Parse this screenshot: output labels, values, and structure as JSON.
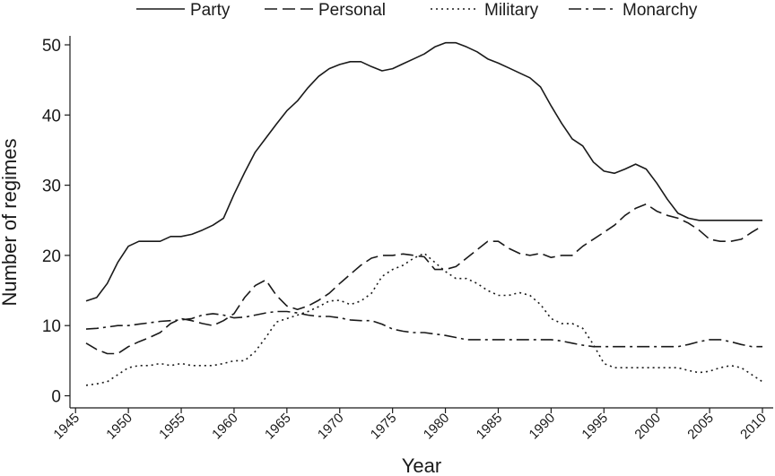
{
  "chart_data": {
    "type": "line",
    "xlabel": "Year",
    "ylabel": "Number of regimes",
    "xlim": [
      1945,
      2010
    ],
    "ylim": [
      0,
      50
    ],
    "x_ticks": [
      "1945",
      "1950",
      "1955",
      "1960",
      "1965",
      "1970",
      "1975",
      "1980",
      "1985",
      "1990",
      "1995",
      "2000",
      "2005",
      "2010"
    ],
    "y_ticks": [
      "0",
      "10",
      "20",
      "30",
      "40",
      "50"
    ],
    "grid": false,
    "legend_position": "top",
    "x": [
      1946,
      1947,
      1948,
      1949,
      1950,
      1951,
      1952,
      1953,
      1954,
      1955,
      1956,
      1957,
      1958,
      1959,
      1960,
      1961,
      1962,
      1963,
      1964,
      1965,
      1966,
      1967,
      1968,
      1969,
      1970,
      1971,
      1972,
      1973,
      1974,
      1975,
      1976,
      1977,
      1978,
      1979,
      1980,
      1981,
      1982,
      1983,
      1984,
      1985,
      1986,
      1987,
      1988,
      1989,
      1990,
      1991,
      1992,
      1993,
      1994,
      1995,
      1996,
      1997,
      1998,
      1999,
      2000,
      2001,
      2002,
      2003,
      2004,
      2005,
      2006,
      2007,
      2008,
      2009,
      2010
    ],
    "series": [
      {
        "name": "Party",
        "dash": "solid",
        "values": [
          13.5,
          14,
          16,
          19,
          21.3,
          22,
          22,
          22,
          22.7,
          22.7,
          23,
          23.6,
          24.3,
          25.3,
          28.7,
          31.8,
          34.7,
          36.7,
          38.7,
          40.6,
          42,
          43.9,
          45.5,
          46.6,
          47.2,
          47.6,
          47.6,
          46.9,
          46.3,
          46.6,
          47.3,
          48,
          48.7,
          49.7,
          50.3,
          50.3,
          49.7,
          49,
          48,
          47.4,
          46.7,
          46,
          45.3,
          44,
          41.3,
          38.8,
          36.6,
          35.6,
          33.3,
          32,
          31.7,
          32.3,
          33,
          32.3,
          30.3,
          28,
          26,
          25.3,
          25,
          25,
          25,
          25,
          25,
          25,
          25
        ]
      },
      {
        "name": "Personal",
        "dash": "long-dash",
        "values": [
          7.5,
          6.6,
          6,
          6,
          7,
          7.7,
          8.3,
          9,
          10.3,
          11,
          10.7,
          10.3,
          10,
          10.7,
          11.7,
          14,
          15.7,
          16.5,
          14.3,
          12.8,
          12.3,
          12.8,
          13.6,
          14.6,
          16,
          17.3,
          18.6,
          19.6,
          20,
          20,
          20.2,
          20,
          19.8,
          18,
          18,
          18.4,
          19.6,
          20.8,
          22,
          22,
          21,
          20.3,
          20,
          20.3,
          19.7,
          20,
          20,
          21.3,
          22.3,
          23.3,
          24.3,
          25.7,
          26.7,
          27.3,
          26.3,
          25.7,
          25.3,
          24.6,
          23.6,
          22.3,
          22,
          22,
          22.3,
          23.3,
          24.2
        ]
      },
      {
        "name": "Military",
        "dash": "dotted",
        "values": [
          1.5,
          1.7,
          2,
          3,
          4,
          4.3,
          4.3,
          4.6,
          4.3,
          4.6,
          4.3,
          4.3,
          4.3,
          4.6,
          5,
          5,
          6.3,
          8.3,
          10.5,
          11,
          11.5,
          12,
          12.7,
          13.5,
          13.6,
          13,
          13.5,
          14.6,
          17,
          18,
          18.6,
          19.6,
          20.3,
          19,
          17.7,
          16.7,
          16.7,
          16,
          15,
          14.3,
          14.3,
          14.7,
          14.3,
          13,
          11,
          10.3,
          10.3,
          9.6,
          7.3,
          4.6,
          4,
          4,
          4,
          4,
          4,
          4,
          4,
          3.6,
          3.3,
          3.5,
          4,
          4.3,
          4,
          3,
          2
        ]
      },
      {
        "name": "Monarchy",
        "dash": "dash-dot",
        "values": [
          9.5,
          9.6,
          9.8,
          10,
          10,
          10.2,
          10.4,
          10.6,
          10.7,
          10.8,
          11,
          11.5,
          11.7,
          11.5,
          11.1,
          11.2,
          11.5,
          11.8,
          12,
          12,
          11.8,
          11.5,
          11.3,
          11.3,
          11.1,
          10.8,
          10.7,
          10.7,
          10.2,
          9.5,
          9.2,
          9,
          9,
          8.8,
          8.6,
          8.3,
          8,
          8,
          8,
          8,
          8,
          8,
          8,
          8,
          8,
          7.8,
          7.5,
          7.2,
          7,
          7,
          7,
          7,
          7,
          7,
          7,
          7,
          7,
          7.3,
          7.7,
          8,
          8,
          7.7,
          7.3,
          7,
          7
        ]
      }
    ]
  }
}
